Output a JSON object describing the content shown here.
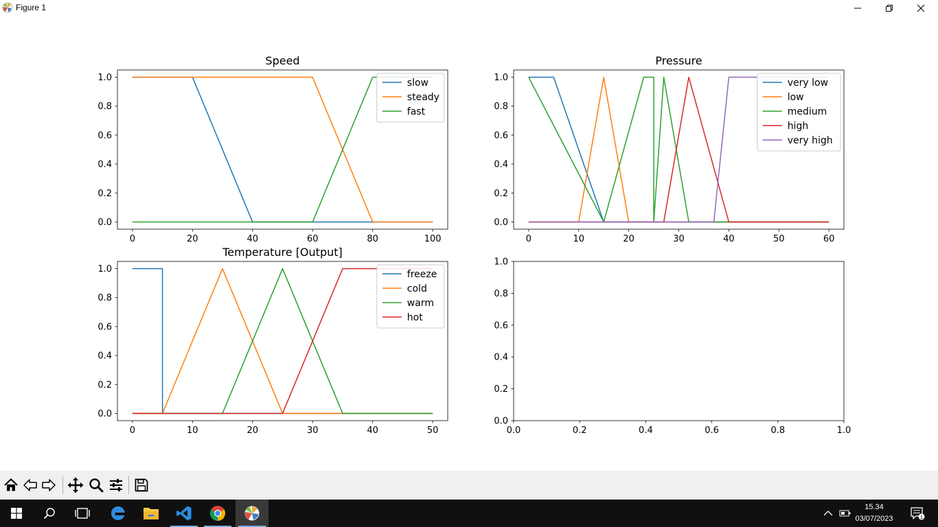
{
  "window": {
    "title": "Figure 1"
  },
  "colors": [
    "#1f77b4",
    "#ff7f0e",
    "#2ca02c",
    "#d62728",
    "#9467bd"
  ],
  "chart_data": [
    {
      "type": "line",
      "title": "Speed",
      "xlabel": "",
      "ylabel": "",
      "xlim": [
        -5,
        105
      ],
      "ylim": [
        -0.05,
        1.05
      ],
      "xticks": [
        0,
        20,
        40,
        60,
        80,
        100
      ],
      "yticks": [
        0.0,
        0.2,
        0.4,
        0.6,
        0.8,
        1.0
      ],
      "legend": "upper right",
      "series": [
        {
          "name": "slow",
          "x": [
            0,
            20,
            40,
            100
          ],
          "y": [
            1,
            1,
            0,
            0
          ]
        },
        {
          "name": "steady",
          "x": [
            0,
            20,
            40,
            45,
            45,
            60,
            80,
            100
          ],
          "y": [
            1,
            1,
            1,
            1,
            1,
            1,
            0,
            0
          ]
        },
        {
          "name": "fast",
          "x": [
            0,
            20,
            40,
            45,
            45,
            60,
            80,
            100
          ],
          "y": [
            0,
            0,
            0,
            0,
            0,
            0,
            1,
            1
          ]
        }
      ]
    },
    {
      "type": "line",
      "title": "Pressure",
      "xlabel": "",
      "ylabel": "",
      "xlim": [
        -3,
        63
      ],
      "ylim": [
        -0.05,
        1.05
      ],
      "xticks": [
        0,
        10,
        20,
        30,
        40,
        50,
        60
      ],
      "yticks": [
        0.0,
        0.2,
        0.4,
        0.6,
        0.8,
        1.0
      ],
      "legend": "upper right",
      "series": [
        {
          "name": "very low",
          "x": [
            0,
            5,
            15,
            60
          ],
          "y": [
            1,
            1,
            0,
            0
          ]
        },
        {
          "name": "low",
          "x": [
            0,
            10,
            15,
            20,
            60
          ],
          "y": [
            0,
            0,
            1,
            0,
            0
          ]
        },
        {
          "name": "medium",
          "x": [
            0,
            15,
            23,
            25,
            25,
            27,
            32,
            60
          ],
          "y": [
            1,
            0,
            1,
            1,
            0,
            1,
            0,
            0
          ]
        },
        {
          "name": "high",
          "x": [
            0,
            27,
            32,
            40,
            60
          ],
          "y": [
            0,
            0,
            1,
            0,
            0
          ]
        },
        {
          "name": "very high",
          "x": [
            0,
            37,
            40,
            60
          ],
          "y": [
            0,
            0,
            1,
            1
          ]
        }
      ]
    },
    {
      "type": "line",
      "title": "Temperature [Output]",
      "xlabel": "",
      "ylabel": "",
      "xlim": [
        -2.5,
        52.5
      ],
      "ylim": [
        -0.05,
        1.05
      ],
      "xticks": [
        0,
        10,
        20,
        30,
        40,
        50
      ],
      "yticks": [
        0.0,
        0.2,
        0.4,
        0.6,
        0.8,
        1.0
      ],
      "legend": "upper right",
      "series": [
        {
          "name": "freeze",
          "x": [
            0,
            5,
            5,
            15,
            50
          ],
          "y": [
            1,
            1,
            0,
            0,
            0
          ]
        },
        {
          "name": "cold",
          "x": [
            0,
            5,
            15,
            25,
            50
          ],
          "y": [
            0,
            0,
            1,
            0,
            0
          ]
        },
        {
          "name": "warm",
          "x": [
            0,
            15,
            25,
            35,
            50
          ],
          "y": [
            0,
            0,
            1,
            0,
            0
          ]
        },
        {
          "name": "hot",
          "x": [
            0,
            25,
            35,
            50
          ],
          "y": [
            0,
            0,
            1,
            1
          ]
        }
      ]
    },
    {
      "type": "line",
      "title": "",
      "xlabel": "",
      "ylabel": "",
      "xlim": [
        0,
        1
      ],
      "ylim": [
        0,
        1
      ],
      "xticks": [
        0.0,
        0.2,
        0.4,
        0.6,
        0.8,
        1.0
      ],
      "yticks": [
        0.0,
        0.2,
        0.4,
        0.6,
        0.8,
        1.0
      ],
      "legend": "none",
      "series": []
    }
  ],
  "toolbar": {
    "tools": [
      "home-icon",
      "back-arrow-icon",
      "forward-arrow-icon",
      "pan-move-icon",
      "zoom-magnifier-icon",
      "configure-subplots-icon",
      "save-floppy-icon"
    ]
  },
  "taskbar": {
    "time": "15.34",
    "date": "03/07/2023",
    "notification_count": "1"
  }
}
